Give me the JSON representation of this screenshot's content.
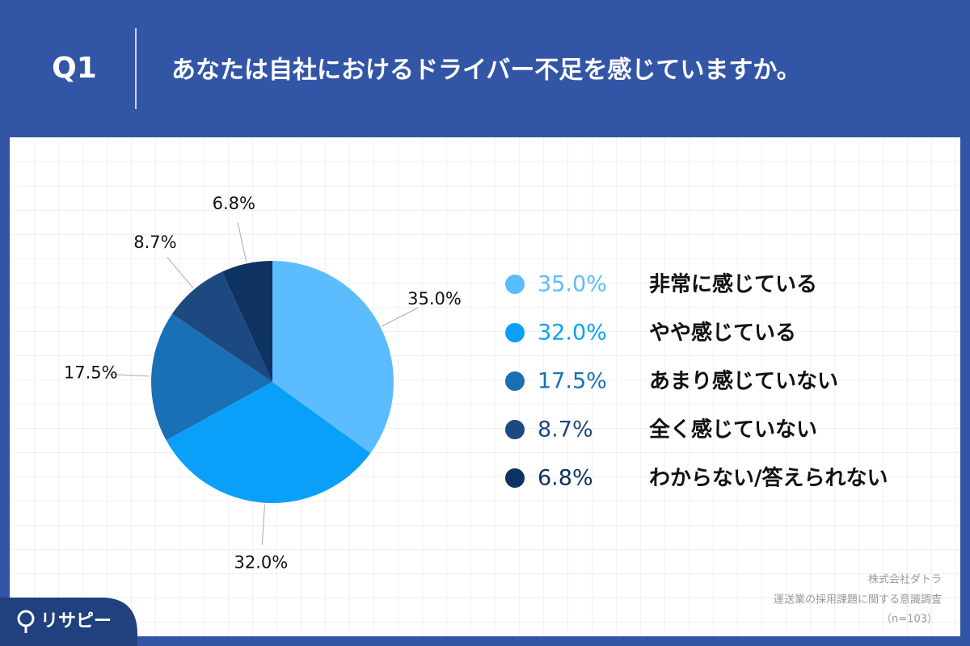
{
  "header": {
    "number": "Q1",
    "title": "あなたは自社におけるドライバー不足を感じていますか。"
  },
  "chart_data": {
    "type": "pie",
    "categories": [
      "非常に感じている",
      "やや感じている",
      "あまり感じていない",
      "全く感じていない",
      "わからない/答えられない"
    ],
    "values": [
      35.0,
      32.0,
      17.5,
      8.7,
      6.8
    ],
    "value_labels": [
      "35.0%",
      "32.0%",
      "17.5%",
      "8.7%",
      "6.8%"
    ],
    "colors": [
      "#5bbcff",
      "#0aa0fa",
      "#1a70b5",
      "#1c4a80",
      "#0e3360"
    ]
  },
  "source": {
    "company": "株式会社ダトラ",
    "survey": "運送業の採用課題に関する意識調査",
    "sample": "（n=103）"
  },
  "logo": {
    "text": "リサピー"
  }
}
